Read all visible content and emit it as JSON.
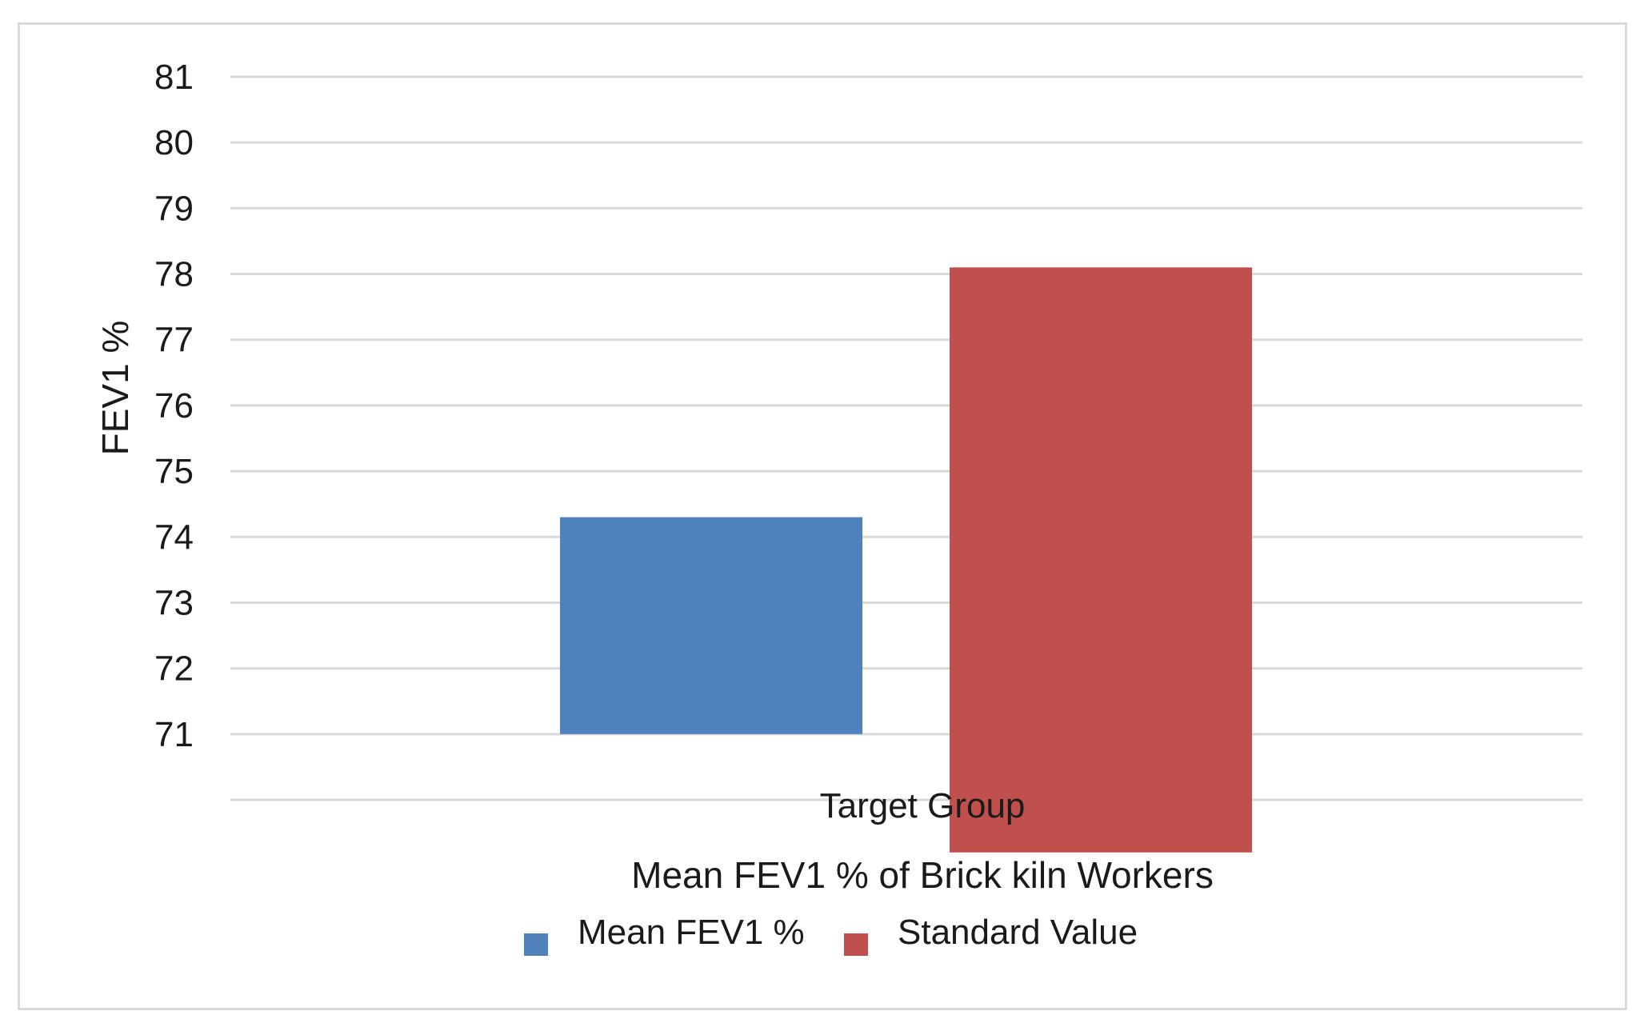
{
  "chart_data": {
    "type": "bar",
    "title": "Mean FEV1 % of Brick kiln Workers",
    "ylabel": "FEV1 %",
    "xlabel": "",
    "categories": [
      "Target Group"
    ],
    "y_tick_labels": [
      "81",
      "80",
      "79",
      "78",
      "77",
      "76",
      "75",
      "74",
      "73",
      "72",
      "71"
    ],
    "ylim": [
      70,
      81
    ],
    "grid": true,
    "legend_position": "bottom",
    "series": [
      {
        "name": "Mean FEV1 %",
        "color": "#4f81bd",
        "low": 71,
        "high": 74.3
      },
      {
        "name": "Standard Value",
        "color": "#c0504d",
        "low": 69.2,
        "high": 78.1
      }
    ]
  }
}
